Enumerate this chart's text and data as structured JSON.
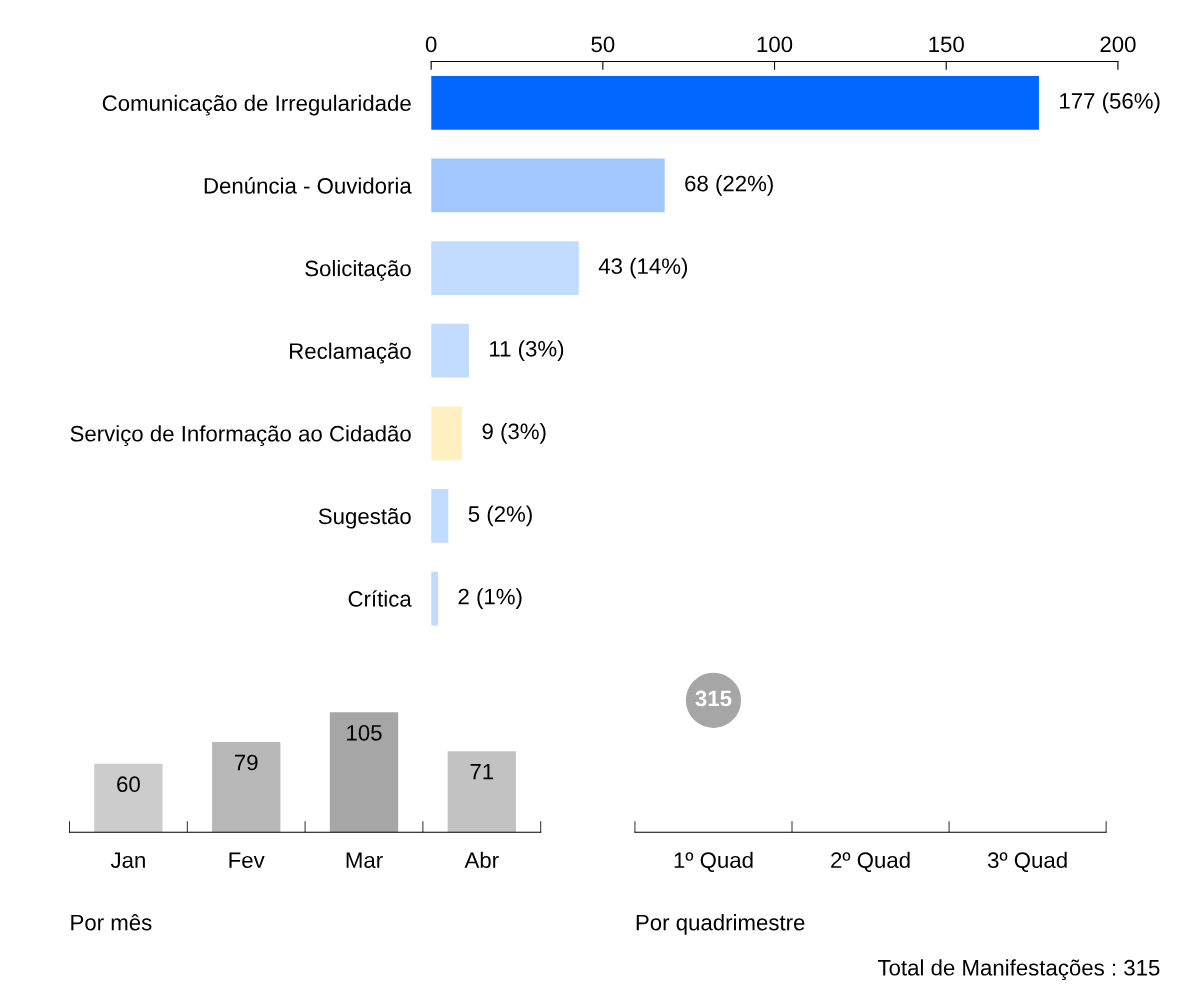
{
  "chart_data": [
    {
      "type": "bar",
      "orientation": "horizontal",
      "categories": [
        "Comunicação de Irregularidade",
        "Denúncia - Ouvidoria",
        "Solicitação",
        "Reclamação",
        "Serviço de Informação ao Cidadão",
        "Sugestão",
        "Crítica"
      ],
      "values": [
        177,
        68,
        43,
        11,
        9,
        5,
        2
      ],
      "colors": [
        "#0066ff",
        "#a3c8ff",
        "#c2dcff",
        "#c2dcff",
        "#fff0c2",
        "#c2dcff",
        "#c2dcff"
      ],
      "value_labels": [
        "177 (56%)",
        "68 (22%)",
        "43 (14%)",
        "11 (3%)",
        "9 (3%)",
        "5 (2%)",
        "2 (1%)"
      ],
      "xlim": [
        0,
        200
      ],
      "xticks": [
        0,
        50,
        100,
        150,
        200
      ]
    },
    {
      "type": "bar",
      "categories": [
        "Jan",
        "Fev",
        "Mar",
        "Abr"
      ],
      "values": [
        60,
        79,
        105,
        71
      ],
      "colors": [
        "#cccccc",
        "#b8b8b8",
        "#a6a6a6",
        "#c2c2c2"
      ],
      "data_labels": true,
      "xlabel": "Por mês"
    },
    {
      "type": "other",
      "categories": [
        "1º Quad",
        "2º Quad",
        "3º Quad"
      ],
      "values": [
        315,
        null,
        null
      ],
      "data_labels": true,
      "color": "#a6a6a6",
      "xlabel": "Por quadrimestre",
      "annotations": [
        "Total de Manifestações : 315"
      ]
    }
  ]
}
